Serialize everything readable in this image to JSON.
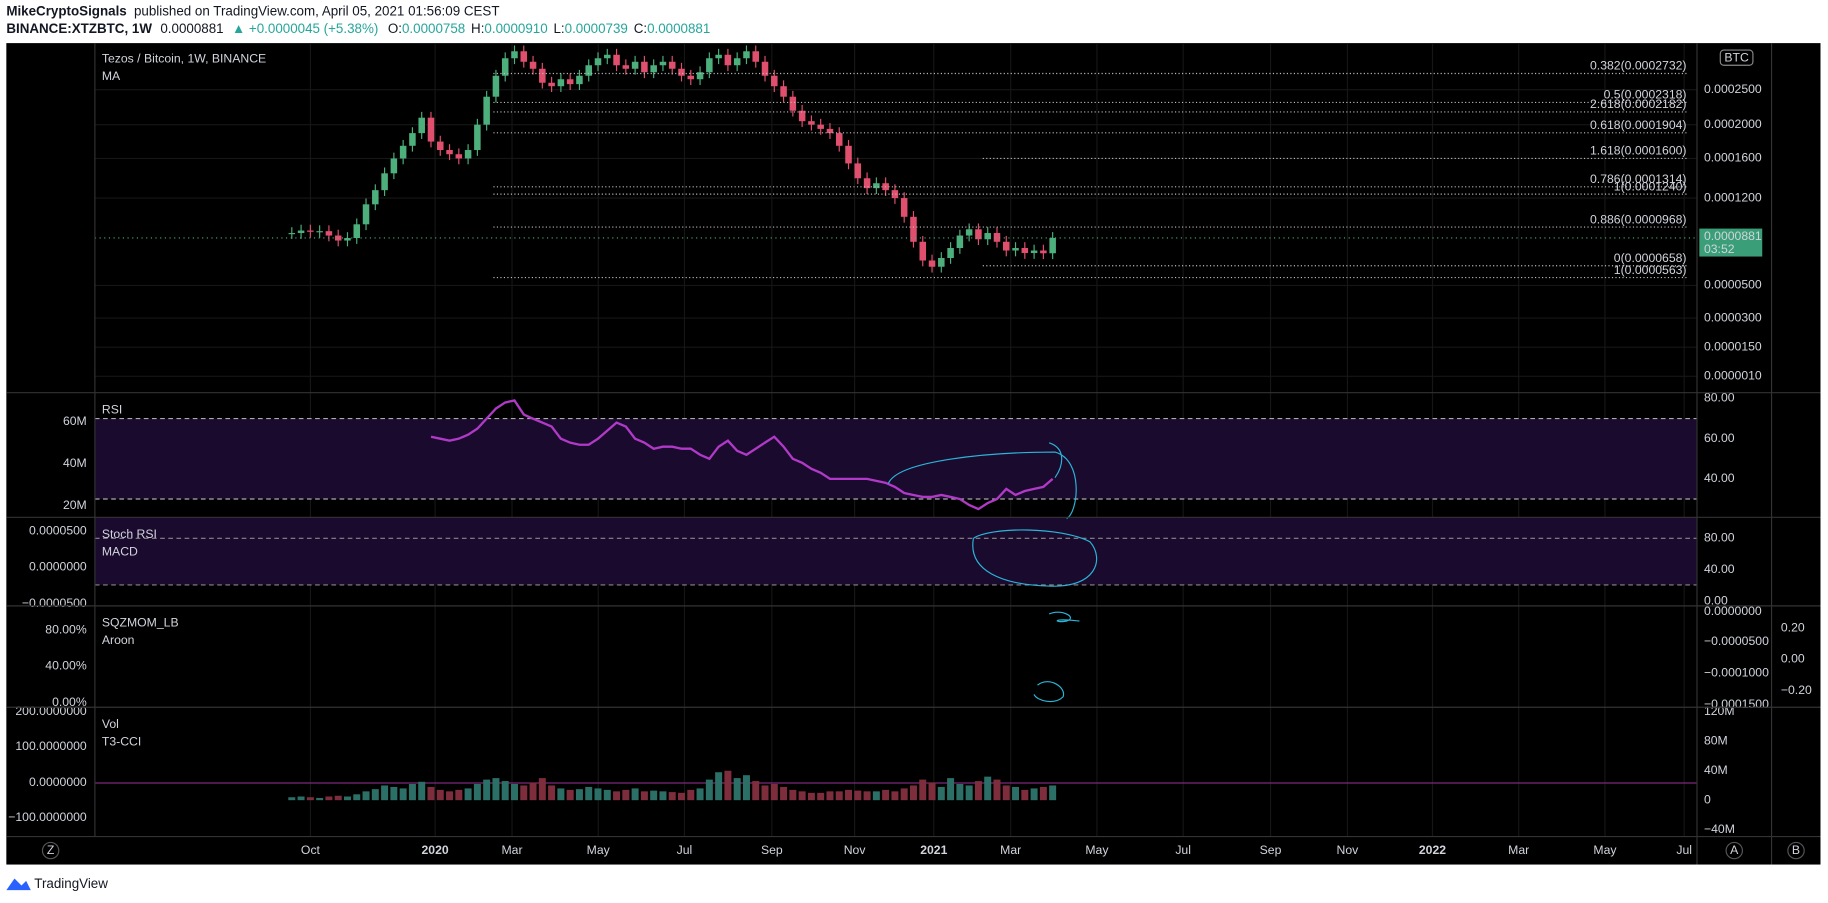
{
  "header": {
    "author": "MikeCryptoSignals",
    "published": "published on TradingView.com, April 05, 2021 01:56:09 CEST",
    "symbol": "BINANCE:XTZBTC, 1W",
    "last": "0.0000881",
    "change": "▲ +0.0000045 (+5.38%)",
    "ohlc": [
      {
        "label": "O:",
        "value": "0.0000758"
      },
      {
        "label": "H:",
        "value": "0.0000910"
      },
      {
        "label": "L:",
        "value": "0.0000739"
      },
      {
        "label": "C:",
        "value": "0.0000881"
      }
    ]
  },
  "price_pane": {
    "title": "Tezos / Bitcoin, 1W, BINANCE",
    "indicator": "MA",
    "currency": "BTC",
    "axis_ticks": [
      {
        "value": 0.00025,
        "label": "0.0002500"
      },
      {
        "value": 0.0002,
        "label": "0.0002000"
      },
      {
        "value": 0.00016,
        "label": "0.0001600"
      },
      {
        "value": 0.00012,
        "label": "0.0001200"
      },
      {
        "value": 5e-05,
        "label": "0.0000500"
      },
      {
        "value": 3e-05,
        "label": "0.0000300"
      },
      {
        "value": 1.5e-05,
        "label": "0.0000150"
      },
      {
        "value": 1e-06,
        "label": "0.0000010"
      }
    ],
    "price_tag": {
      "value": 8.81e-05,
      "label": "0.0000881"
    },
    "countdown": "03:52",
    "fib_levels": [
      {
        "label": "0.382(0.0002732)",
        "price": 0.0002732
      },
      {
        "label": "0.5(0.0002318)",
        "price": 0.0002318
      },
      {
        "label": "2.618(0.0002182)",
        "price": 0.0002182
      },
      {
        "label": "0.618(0.0001904)",
        "price": 0.0001904
      },
      {
        "label": "1.618(0.0001600)",
        "price": 0.00016
      },
      {
        "label": "0.786(0.0001314)",
        "price": 0.0001314
      },
      {
        "label": "1(0.0001240)",
        "price": 0.000124
      },
      {
        "label": "0.886(0.0000968)",
        "price": 9.68e-05
      },
      {
        "label": "0(0.0000658)",
        "price": 6.58e-05
      },
      {
        "label": "1(0.0000563)",
        "price": 5.63e-05
      }
    ],
    "closes": [
      9.2e-05,
      9.4e-05,
      9.3e-05,
      9.35e-05,
      9e-05,
      8.6e-05,
      8.8e-05,
      9.9e-05,
      0.000115,
      0.000128,
      0.000145,
      0.00016,
      0.000175,
      0.00019,
      0.00021,
      0.00018,
      0.00017,
      0.000165,
      0.00016,
      0.00017,
      0.0002,
      0.00024,
      0.00027,
      0.000295,
      0.000305,
      0.00029,
      0.00028,
      0.00026,
      0.000255,
      0.000265,
      0.000258,
      0.00027,
      0.000285,
      0.000295,
      0.0003,
      0.000285,
      0.00028,
      0.00029,
      0.000275,
      0.000285,
      0.00029,
      0.00028,
      0.00027,
      0.000265,
      0.000275,
      0.000295,
      0.0003,
      0.000285,
      0.000295,
      0.000305,
      0.00029,
      0.00027,
      0.000255,
      0.00024,
      0.00022,
      0.000205,
      0.0002,
      0.000195,
      0.00019,
      0.000175,
      0.000155,
      0.00014,
      0.00013,
      0.000135,
      0.000128,
      0.00012,
      0.000105,
      8.5e-05,
      7e-05,
      6.5e-05,
      7.2e-05,
      8e-05,
      9e-05,
      9.5e-05,
      8.7e-05,
      9.2e-05,
      8.5e-05,
      7.8e-05,
      8e-05,
      7.6e-05,
      7.8e-05,
      7.58e-05,
      8.81e-05
    ]
  },
  "rsi_pane": {
    "label": "RSI",
    "left_ticks": [
      "60M",
      "40M",
      "20M"
    ],
    "right_ticks": [
      {
        "value": 80,
        "label": "80.00"
      },
      {
        "value": 60,
        "label": "60.00"
      },
      {
        "value": 40,
        "label": "40.00"
      }
    ],
    "bands": [
      70,
      30
    ],
    "values": [
      null,
      null,
      null,
      null,
      null,
      null,
      null,
      null,
      null,
      null,
      null,
      null,
      null,
      null,
      null,
      61,
      60,
      59,
      60,
      62,
      65,
      70,
      75,
      78,
      79,
      72,
      70,
      68,
      66,
      60,
      58,
      57,
      57,
      60,
      64,
      68,
      66,
      60,
      58,
      55,
      56,
      56,
      55,
      55,
      52,
      50,
      56,
      59,
      54,
      52,
      55,
      58,
      61,
      56,
      50,
      48,
      45,
      43,
      40,
      40,
      40,
      40,
      40,
      39,
      38,
      36,
      33,
      32,
      31,
      31,
      32,
      31,
      30,
      27,
      25,
      28,
      30,
      35,
      32,
      34,
      35,
      36,
      40
    ]
  },
  "stoch_pane": {
    "labels": [
      "Stoch RSI",
      "MACD"
    ],
    "left_ticks": [
      "0.0000500",
      "0.0000000",
      "−0.0000500"
    ],
    "right_ticks": [
      "80.00",
      "40.00",
      "0.00"
    ]
  },
  "squeeze_pane": {
    "labels": [
      "SQZMOM_LB",
      "Aroon"
    ],
    "left_ticks": [
      "80.00%",
      "40.00%",
      "0.00%"
    ],
    "right_ticks": [
      "0.0000000",
      "−0.0000500",
      "−0.0001000",
      "−0.0001500"
    ],
    "far_right_ticks": [
      "0.20",
      "0.00",
      "−0.20"
    ]
  },
  "volume_pane": {
    "labels": [
      "Vol",
      "T3-CCI"
    ],
    "left_ticks": [
      "200.0000000",
      "100.0000000",
      "0.0000000",
      "−100.0000000"
    ],
    "right_ticks": [
      {
        "value": 120000000,
        "label": "120M"
      },
      {
        "value": 80000000,
        "label": "80M"
      },
      {
        "value": 40000000,
        "label": "40M"
      },
      {
        "value": 0,
        "label": "0"
      },
      {
        "value": -40000000,
        "label": "−40M"
      }
    ],
    "volumes": [
      4000000,
      5000000,
      4000000,
      3000000,
      5000000,
      6000000,
      5000000,
      8000000,
      12000000,
      15000000,
      20000000,
      18000000,
      16000000,
      22000000,
      25000000,
      18000000,
      14000000,
      12000000,
      14000000,
      16000000,
      22000000,
      28000000,
      30000000,
      26000000,
      22000000,
      20000000,
      24000000,
      30000000,
      20000000,
      16000000,
      14000000,
      15000000,
      18000000,
      16000000,
      14000000,
      12000000,
      14000000,
      16000000,
      12000000,
      13000000,
      12000000,
      11000000,
      10000000,
      14000000,
      16000000,
      28000000,
      38000000,
      40000000,
      30000000,
      34000000,
      26000000,
      20000000,
      22000000,
      18000000,
      14000000,
      12000000,
      10000000,
      10000000,
      12000000,
      12000000,
      14000000,
      13000000,
      12000000,
      12000000,
      14000000,
      12000000,
      16000000,
      20000000,
      28000000,
      24000000,
      18000000,
      30000000,
      22000000,
      20000000,
      26000000,
      32000000,
      28000000,
      20000000,
      18000000,
      14000000,
      16000000,
      18000000,
      20000000
    ]
  },
  "x_axis": [
    "Oct",
    "2020",
    "Mar",
    "May",
    "Jul",
    "Sep",
    "Nov",
    "2021",
    "Mar",
    "May",
    "Jul",
    "Sep",
    "Nov",
    "2022",
    "Mar",
    "May",
    "Jul"
  ],
  "footer": {
    "brand": "TradingView",
    "buttons": [
      "Z",
      "A",
      "B"
    ]
  }
}
